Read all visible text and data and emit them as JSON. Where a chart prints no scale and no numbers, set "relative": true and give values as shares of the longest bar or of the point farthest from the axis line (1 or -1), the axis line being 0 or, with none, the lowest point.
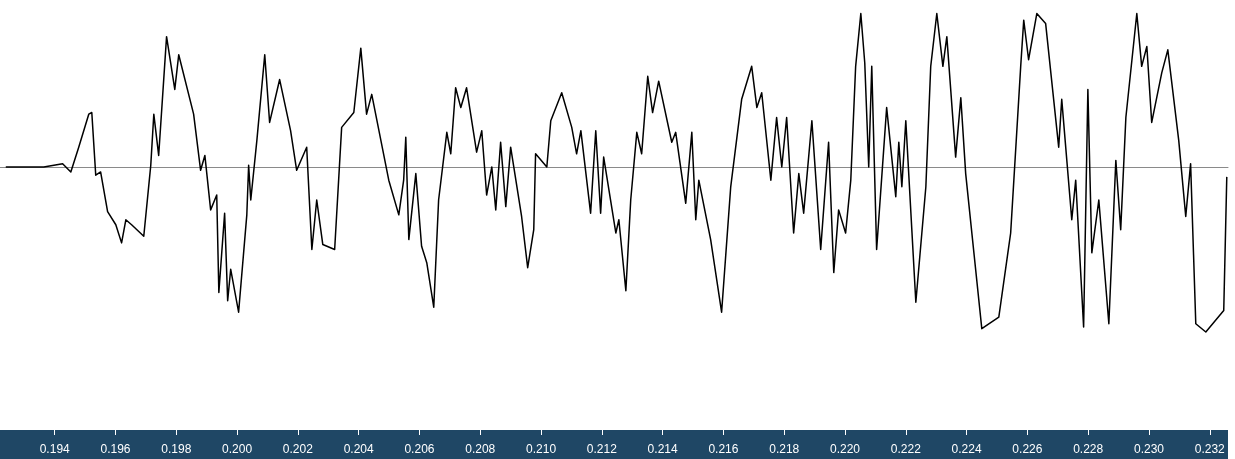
{
  "chart_data": {
    "type": "line",
    "relative": true,
    "grid": false,
    "marker": "none",
    "line_style": "solid",
    "xlim": [
      0.1922,
      0.2326
    ],
    "xticks": [
      0.194,
      0.196,
      0.198,
      {
        "value": 0.2,
        "label": "0.200"
      },
      0.202,
      0.204,
      0.206,
      0.208,
      {
        "value": 0.21,
        "label": "0.210"
      },
      0.212,
      0.214,
      0.216,
      0.218,
      {
        "value": 0.22,
        "label": "0.220"
      },
      0.222,
      0.224,
      0.226,
      0.228,
      {
        "value": 0.23,
        "label": "0.230"
      },
      0.232
    ],
    "series": [
      {
        "color": "#000000",
        "x": [
          0.19239,
          0.19364,
          0.19426,
          0.19453,
          0.19479,
          0.19512,
          0.19522,
          0.19535,
          0.19551,
          0.19574,
          0.19601,
          0.1962,
          0.19634,
          0.19653,
          0.19693,
          0.19716,
          0.19726,
          0.19742,
          0.19768,
          0.19795,
          0.19808,
          0.19857,
          0.1988,
          0.19894,
          0.19913,
          0.19933,
          0.1994,
          0.19959,
          0.19969,
          0.19979,
          0.20005,
          0.20032,
          0.20038,
          0.20045,
          0.20065,
          0.20091,
          0.20107,
          0.2014,
          0.20176,
          0.20196,
          0.20229,
          0.20246,
          0.20262,
          0.20282,
          0.20321,
          0.20344,
          0.20384,
          0.20407,
          0.20426,
          0.20443,
          0.20499,
          0.20532,
          0.20548,
          0.20555,
          0.20565,
          0.20588,
          0.20607,
          0.20624,
          0.20647,
          0.20663,
          0.2069,
          0.20703,
          0.20719,
          0.20736,
          0.20755,
          0.20788,
          0.20805,
          0.20821,
          0.20838,
          0.20851,
          0.20867,
          0.20884,
          0.209,
          0.20936,
          0.20956,
          0.20976,
          0.20982,
          0.21019,
          0.21032,
          0.21068,
          0.21101,
          0.21117,
          0.21131,
          0.21163,
          0.2118,
          0.21196,
          0.21206,
          0.21246,
          0.21256,
          0.21279,
          0.21295,
          0.21315,
          0.21331,
          0.21351,
          0.21367,
          0.21387,
          0.2143,
          0.21443,
          0.21476,
          0.21496,
          0.21509,
          0.21519,
          0.21558,
          0.21594,
          0.21624,
          0.2166,
          0.21693,
          0.2171,
          0.21726,
          0.21756,
          0.21775,
          0.21792,
          0.21808,
          0.21831,
          0.21848,
          0.21864,
          0.21891,
          0.2192,
          0.21946,
          0.21963,
          0.21979,
          0.22002,
          0.22019,
          0.22035,
          0.22052,
          0.22065,
          0.22078,
          0.22088,
          0.22104,
          0.22137,
          0.22167,
          0.22177,
          0.22187,
          0.222,
          0.22233,
          0.22266,
          0.22282,
          0.22302,
          0.22322,
          0.22335,
          0.22364,
          0.22381,
          0.22397,
          0.2245,
          0.22506,
          0.22545,
          0.22578,
          0.22588,
          0.22604,
          0.22631,
          0.2266,
          0.22703,
          0.22713,
          0.22746,
          0.22759,
          0.22785,
          0.22799,
          0.22812,
          0.22835,
          0.22868,
          0.22891,
          0.22907,
          0.22924,
          0.2296,
          0.22976,
          0.22993,
          0.23009,
          0.23042,
          0.23062,
          0.23098,
          0.23121,
          0.23137,
          0.23154,
          0.23187,
          0.23246,
          0.23256
        ],
        "values": [
          0,
          0,
          0.02,
          -0.03,
          0.12,
          0.32,
          0.33,
          -0.05,
          -0.03,
          -0.27,
          -0.35,
          -0.46,
          -0.32,
          -0.35,
          -0.42,
          0.01,
          0.32,
          0.07,
          0.79,
          0.47,
          0.68,
          0.32,
          -0.02,
          0.07,
          -0.26,
          -0.17,
          -0.76,
          -0.28,
          -0.81,
          -0.62,
          -0.88,
          -0.29,
          0.01,
          -0.2,
          0.16,
          0.68,
          0.27,
          0.53,
          0.22,
          -0.02,
          0.12,
          -0.5,
          -0.2,
          -0.47,
          -0.5,
          0.24,
          0.33,
          0.72,
          0.32,
          0.44,
          -0.08,
          -0.29,
          -0.08,
          0.18,
          -0.44,
          -0.04,
          -0.48,
          -0.58,
          -0.85,
          -0.2,
          0.21,
          0.08,
          0.48,
          0.36,
          0.48,
          0.09,
          0.22,
          -0.17,
          0,
          -0.26,
          0.15,
          -0.24,
          0.12,
          -0.3,
          -0.61,
          -0.38,
          0.08,
          0,
          0.28,
          0.45,
          0.24,
          0.08,
          0.22,
          -0.28,
          0.22,
          -0.28,
          0.06,
          -0.4,
          -0.32,
          -0.75,
          -0.2,
          0.21,
          0.08,
          0.55,
          0.33,
          0.52,
          0.15,
          0.21,
          -0.22,
          0.21,
          -0.32,
          -0.08,
          -0.44,
          -0.88,
          -0.12,
          0.41,
          0.61,
          0.36,
          0.45,
          -0.08,
          0.3,
          0,
          0.3,
          -0.4,
          -0.04,
          -0.28,
          0.28,
          -0.5,
          0.15,
          -0.64,
          -0.26,
          -0.4,
          -0.08,
          0.61,
          0.93,
          0.63,
          0,
          0.61,
          -0.5,
          0.36,
          -0.18,
          0.15,
          -0.12,
          0.28,
          -0.82,
          -0.12,
          0.61,
          0.93,
          0.61,
          0.79,
          0.06,
          0.42,
          -0.04,
          -0.98,
          -0.91,
          -0.4,
          0.61,
          0.89,
          0.65,
          0.93,
          0.87,
          0.12,
          0.41,
          -0.32,
          -0.08,
          -0.97,
          0.47,
          -0.52,
          -0.2,
          -0.95,
          0.04,
          -0.38,
          0.3,
          0.93,
          0.61,
          0.73,
          0.27,
          0.57,
          0.71,
          0.16,
          -0.3,
          0.02,
          -0.95,
          -1,
          -0.87,
          -0.06
        ]
      }
    ]
  }
}
